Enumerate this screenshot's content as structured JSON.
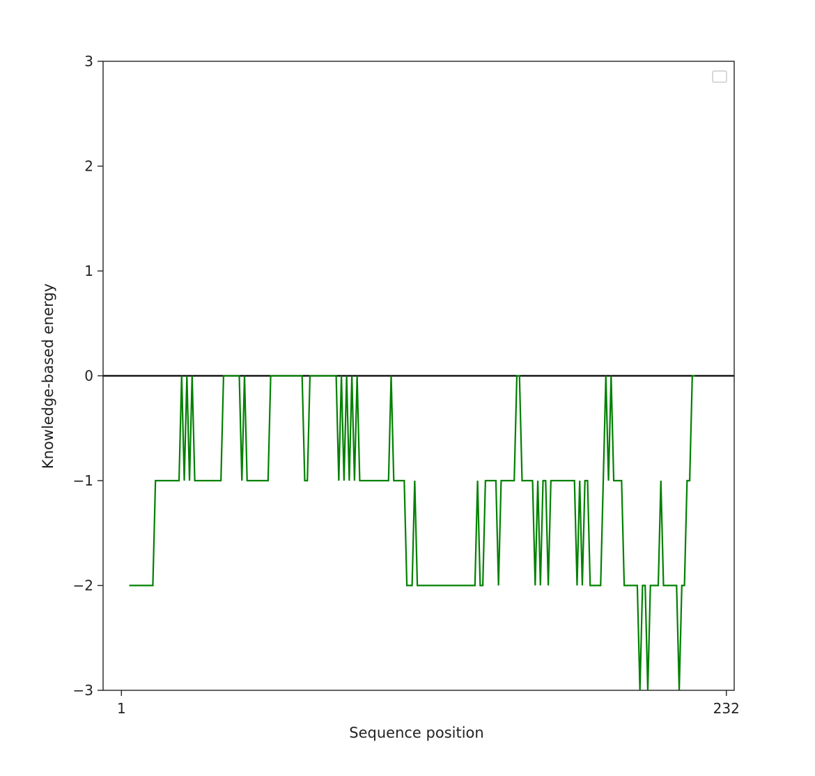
{
  "chart_data": {
    "type": "line",
    "xlabel": "Sequence position",
    "ylabel": "Knowledge-based energy",
    "x_ticks": [
      {
        "value": 1,
        "label": "1"
      },
      {
        "value": 232,
        "label": "232"
      }
    ],
    "y_ticks": [
      {
        "value": 3,
        "label": "3"
      },
      {
        "value": 2,
        "label": "2"
      },
      {
        "value": 1,
        "label": "1"
      },
      {
        "value": 0,
        "label": "0"
      },
      {
        "value": -1,
        "label": "−1"
      },
      {
        "value": -2,
        "label": "−2"
      },
      {
        "value": -3,
        "label": "−3"
      }
    ],
    "xlim": [
      -6,
      235
    ],
    "ylim": [
      -3,
      3
    ],
    "grid": false,
    "legend": {
      "placement": "top-right",
      "entries": []
    },
    "reference_line": {
      "y": 0,
      "color": "#000000"
    },
    "series": [
      {
        "color": "#008000",
        "points": [
          [
            4,
            -2
          ],
          [
            5,
            -2
          ],
          [
            6,
            -2
          ],
          [
            7,
            -2
          ],
          [
            8,
            -2
          ],
          [
            9,
            -2
          ],
          [
            10,
            -2
          ],
          [
            11,
            -2
          ],
          [
            12,
            -2
          ],
          [
            13,
            -2
          ],
          [
            14,
            -1
          ],
          [
            15,
            -1
          ],
          [
            16,
            -1
          ],
          [
            17,
            -1
          ],
          [
            18,
            -1
          ],
          [
            19,
            -1
          ],
          [
            20,
            -1
          ],
          [
            21,
            -1
          ],
          [
            22,
            -1
          ],
          [
            23,
            -1
          ],
          [
            24,
            0
          ],
          [
            25,
            -1
          ],
          [
            26,
            0
          ],
          [
            27,
            -1
          ],
          [
            28,
            0
          ],
          [
            29,
            -1
          ],
          [
            30,
            -1
          ],
          [
            31,
            -1
          ],
          [
            32,
            -1
          ],
          [
            33,
            -1
          ],
          [
            34,
            -1
          ],
          [
            35,
            -1
          ],
          [
            36,
            -1
          ],
          [
            37,
            -1
          ],
          [
            38,
            -1
          ],
          [
            39,
            -1
          ],
          [
            40,
            0
          ],
          [
            41,
            0
          ],
          [
            42,
            0
          ],
          [
            43,
            0
          ],
          [
            44,
            0
          ],
          [
            45,
            0
          ],
          [
            46,
            0
          ],
          [
            47,
            -1
          ],
          [
            48,
            0
          ],
          [
            49,
            -1
          ],
          [
            50,
            -1
          ],
          [
            51,
            -1
          ],
          [
            52,
            -1
          ],
          [
            53,
            -1
          ],
          [
            54,
            -1
          ],
          [
            55,
            -1
          ],
          [
            56,
            -1
          ],
          [
            57,
            -1
          ],
          [
            58,
            0
          ],
          [
            59,
            0
          ],
          [
            60,
            0
          ],
          [
            61,
            0
          ],
          [
            62,
            0
          ],
          [
            63,
            0
          ],
          [
            64,
            0
          ],
          [
            65,
            0
          ],
          [
            66,
            0
          ],
          [
            67,
            0
          ],
          [
            68,
            0
          ],
          [
            69,
            0
          ],
          [
            70,
            0
          ],
          [
            71,
            -1
          ],
          [
            72,
            -1
          ],
          [
            73,
            0
          ],
          [
            74,
            0
          ],
          [
            75,
            0
          ],
          [
            76,
            0
          ],
          [
            77,
            0
          ],
          [
            78,
            0
          ],
          [
            79,
            0
          ],
          [
            80,
            0
          ],
          [
            81,
            0
          ],
          [
            82,
            0
          ],
          [
            83,
            0
          ],
          [
            84,
            -1
          ],
          [
            85,
            0
          ],
          [
            86,
            -1
          ],
          [
            87,
            0
          ],
          [
            88,
            -1
          ],
          [
            89,
            0
          ],
          [
            90,
            -1
          ],
          [
            91,
            0
          ],
          [
            92,
            -1
          ],
          [
            93,
            -1
          ],
          [
            94,
            -1
          ],
          [
            95,
            -1
          ],
          [
            96,
            -1
          ],
          [
            97,
            -1
          ],
          [
            98,
            -1
          ],
          [
            99,
            -1
          ],
          [
            100,
            -1
          ],
          [
            101,
            -1
          ],
          [
            102,
            -1
          ],
          [
            103,
            -1
          ],
          [
            104,
            0
          ],
          [
            105,
            -1
          ],
          [
            106,
            -1
          ],
          [
            107,
            -1
          ],
          [
            108,
            -1
          ],
          [
            109,
            -1
          ],
          [
            110,
            -2
          ],
          [
            111,
            -2
          ],
          [
            112,
            -2
          ],
          [
            113,
            -1
          ],
          [
            114,
            -2
          ],
          [
            115,
            -2
          ],
          [
            116,
            -2
          ],
          [
            117,
            -2
          ],
          [
            118,
            -2
          ],
          [
            119,
            -2
          ],
          [
            120,
            -2
          ],
          [
            121,
            -2
          ],
          [
            122,
            -2
          ],
          [
            123,
            -2
          ],
          [
            124,
            -2
          ],
          [
            125,
            -2
          ],
          [
            126,
            -2
          ],
          [
            127,
            -2
          ],
          [
            128,
            -2
          ],
          [
            129,
            -2
          ],
          [
            130,
            -2
          ],
          [
            131,
            -2
          ],
          [
            132,
            -2
          ],
          [
            133,
            -2
          ],
          [
            134,
            -2
          ],
          [
            135,
            -2
          ],
          [
            136,
            -2
          ],
          [
            137,
            -1
          ],
          [
            138,
            -2
          ],
          [
            139,
            -2
          ],
          [
            140,
            -1
          ],
          [
            141,
            -1
          ],
          [
            142,
            -1
          ],
          [
            143,
            -1
          ],
          [
            144,
            -1
          ],
          [
            145,
            -2
          ],
          [
            146,
            -1
          ],
          [
            147,
            -1
          ],
          [
            148,
            -1
          ],
          [
            149,
            -1
          ],
          [
            150,
            -1
          ],
          [
            151,
            -1
          ],
          [
            152,
            0
          ],
          [
            153,
            0
          ],
          [
            154,
            -1
          ],
          [
            155,
            -1
          ],
          [
            156,
            -1
          ],
          [
            157,
            -1
          ],
          [
            158,
            -1
          ],
          [
            159,
            -2
          ],
          [
            160,
            -1
          ],
          [
            161,
            -2
          ],
          [
            162,
            -1
          ],
          [
            163,
            -1
          ],
          [
            164,
            -2
          ],
          [
            165,
            -1
          ],
          [
            166,
            -1
          ],
          [
            167,
            -1
          ],
          [
            168,
            -1
          ],
          [
            169,
            -1
          ],
          [
            170,
            -1
          ],
          [
            171,
            -1
          ],
          [
            172,
            -1
          ],
          [
            173,
            -1
          ],
          [
            174,
            -1
          ],
          [
            175,
            -2
          ],
          [
            176,
            -1
          ],
          [
            177,
            -2
          ],
          [
            178,
            -1
          ],
          [
            179,
            -1
          ],
          [
            180,
            -2
          ],
          [
            181,
            -2
          ],
          [
            182,
            -2
          ],
          [
            183,
            -2
          ],
          [
            184,
            -2
          ],
          [
            185,
            -1
          ],
          [
            186,
            0
          ],
          [
            187,
            -1
          ],
          [
            188,
            0
          ],
          [
            189,
            -1
          ],
          [
            190,
            -1
          ],
          [
            191,
            -1
          ],
          [
            192,
            -1
          ],
          [
            193,
            -2
          ],
          [
            194,
            -2
          ],
          [
            195,
            -2
          ],
          [
            196,
            -2
          ],
          [
            197,
            -2
          ],
          [
            198,
            -2
          ],
          [
            199,
            -3
          ],
          [
            200,
            -2
          ],
          [
            201,
            -2
          ],
          [
            202,
            -3
          ],
          [
            203,
            -2
          ],
          [
            204,
            -2
          ],
          [
            205,
            -2
          ],
          [
            206,
            -2
          ],
          [
            207,
            -1
          ],
          [
            208,
            -2
          ],
          [
            209,
            -2
          ],
          [
            210,
            -2
          ],
          [
            211,
            -2
          ],
          [
            212,
            -2
          ],
          [
            213,
            -2
          ],
          [
            214,
            -3
          ],
          [
            215,
            -2
          ],
          [
            216,
            -2
          ],
          [
            217,
            -1
          ],
          [
            218,
            -1
          ],
          [
            219,
            0
          ],
          [
            220,
            0
          ]
        ]
      }
    ]
  }
}
